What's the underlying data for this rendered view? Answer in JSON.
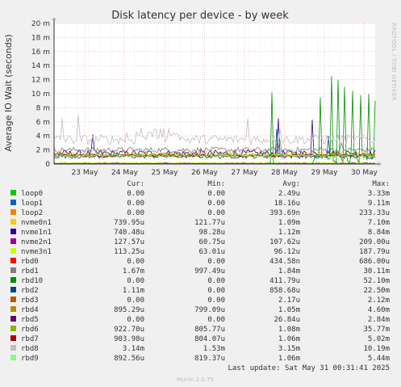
{
  "chart_data": {
    "type": "line",
    "title": "Disk latency per device - by week",
    "ylabel": "Average IO Wait (seconds)",
    "xlabel": "",
    "ylim": [
      0,
      20
    ],
    "y_unit": "m",
    "y_ticks": [
      "0",
      "2 m",
      "4 m",
      "6 m",
      "8 m",
      "10 m",
      "12 m",
      "14 m",
      "16 m",
      "18 m",
      "20 m"
    ],
    "x_ticks": [
      "23 May",
      "24 May",
      "25 May",
      "26 May",
      "27 May",
      "28 May",
      "29 May",
      "30 May"
    ],
    "grid": true,
    "legend_headers": {
      "cur": "Cur:",
      "min": "Min:",
      "avg": "Avg:",
      "max": "Max:"
    },
    "series": [
      {
        "name": "loop0",
        "color": "#00cc00",
        "cur": "0.00",
        "min": "0.00",
        "avg": "2.49u",
        "max": "3.33m"
      },
      {
        "name": "loop1",
        "color": "#0066b3",
        "cur": "0.00",
        "min": "0.00",
        "avg": "18.16u",
        "max": "9.11m"
      },
      {
        "name": "loop2",
        "color": "#ff8000",
        "cur": "0.00",
        "min": "0.00",
        "avg": "393.69n",
        "max": "233.33u"
      },
      {
        "name": "nvme0n1",
        "color": "#ffcc00",
        "cur": "739.95u",
        "min": "121.77u",
        "avg": "1.09m",
        "max": "7.10m"
      },
      {
        "name": "nvme1n1",
        "color": "#330099",
        "cur": "740.48u",
        "min": "98.28u",
        "avg": "1.12m",
        "max": "8.84m"
      },
      {
        "name": "nvme2n1",
        "color": "#990099",
        "cur": "127.57u",
        "min": "60.75u",
        "avg": "107.62u",
        "max": "209.00u"
      },
      {
        "name": "nvme3n1",
        "color": "#ccff00",
        "cur": "113.25u",
        "min": "63.01u",
        "avg": "96.12u",
        "max": "187.79u"
      },
      {
        "name": "rbd0",
        "color": "#ff0000",
        "cur": "0.00",
        "min": "0.00",
        "avg": "434.58n",
        "max": "686.00u"
      },
      {
        "name": "rbd1",
        "color": "#808080",
        "cur": "1.67m",
        "min": "997.49u",
        "avg": "1.84m",
        "max": "30.11m"
      },
      {
        "name": "rbd10",
        "color": "#008f00",
        "cur": "0.00",
        "min": "0.00",
        "avg": "411.79u",
        "max": "52.10m"
      },
      {
        "name": "rbd2",
        "color": "#00487d",
        "cur": "1.11m",
        "min": "0.00",
        "avg": "858.68u",
        "max": "22.50m"
      },
      {
        "name": "rbd3",
        "color": "#b35a00",
        "cur": "0.00",
        "min": "0.00",
        "avg": "2.17u",
        "max": "2.12m"
      },
      {
        "name": "rbd4",
        "color": "#b38f00",
        "cur": "895.29u",
        "min": "799.09u",
        "avg": "1.05m",
        "max": "4.60m"
      },
      {
        "name": "rbd5",
        "color": "#6b006b",
        "cur": "0.00",
        "min": "0.00",
        "avg": "26.84u",
        "max": "2.84m"
      },
      {
        "name": "rbd6",
        "color": "#8fb300",
        "cur": "922.70u",
        "min": "805.77u",
        "avg": "1.08m",
        "max": "35.77m"
      },
      {
        "name": "rbd7",
        "color": "#b30000",
        "cur": "903.98u",
        "min": "804.07u",
        "avg": "1.06m",
        "max": "5.02m"
      },
      {
        "name": "rbd8",
        "color": "#bebebe",
        "cur": "3.14m",
        "min": "1.53m",
        "avg": "3.15m",
        "max": "10.19m"
      },
      {
        "name": "rbd9",
        "color": "#80ff80",
        "cur": "892.56u",
        "min": "819.37u",
        "avg": "1.06m",
        "max": "5.44m"
      }
    ]
  },
  "last_update": "Last update: Sat May 31 00:31:41 2025",
  "side_label": "RRDTOOL / TOBI OETIKER",
  "footer": "Munin 2.0.75"
}
